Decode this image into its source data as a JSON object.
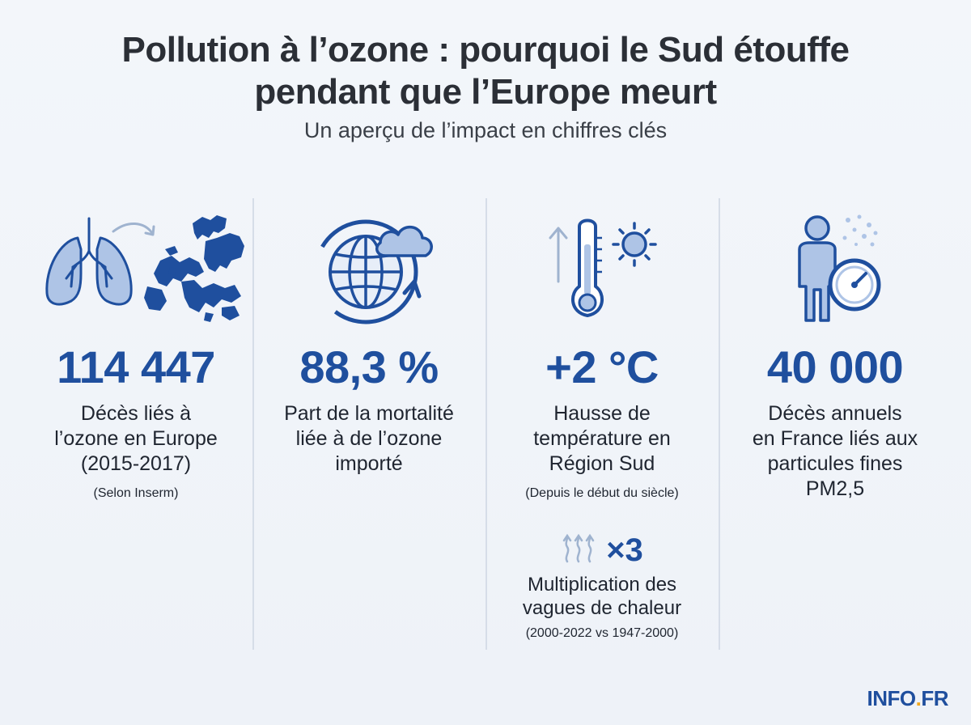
{
  "header": {
    "title_line1": "Pollution à l’ozone : pourquoi le Sud étouffe",
    "title_line2": "pendant que l’Europe meurt",
    "subtitle": "Un aperçu de l’impact en chiffres clés"
  },
  "stats": [
    {
      "icon": "lungs-to-europe-map-icon",
      "value": "114 447",
      "desc_lines": [
        "Décès liés à",
        "l’ozone en Europe",
        "(2015-2017)"
      ],
      "note": "(Selon Inserm)"
    },
    {
      "icon": "globe-cloud-icon",
      "value": "88,3 %",
      "desc_lines": [
        "Part de la mortalité",
        "liée à de l’ozone",
        "importé"
      ],
      "note": ""
    },
    {
      "icon": "thermometer-sun-icon",
      "value": "+2 °C",
      "desc_lines": [
        "Hausse de",
        "température en",
        "Région Sud"
      ],
      "note": "(Depuis le début du siècle)"
    },
    {
      "icon": "person-gauge-icon",
      "value": "40 000",
      "desc_lines": [
        "Décès annuels",
        "en France liés aux",
        "particules fines",
        "PM2,5"
      ],
      "note": ""
    }
  ],
  "heatwaves": {
    "icon": "heat-waves-icon",
    "value": "×3",
    "desc_lines": [
      "Multiplication des",
      "vagues de chaleur"
    ],
    "note": "(2000-2022 vs 1947-2000)"
  },
  "brand": {
    "name": "INFO",
    "dot": ".",
    "tld": "FR"
  },
  "colors": {
    "accent": "#1f4f9e",
    "light_blue": "#aec4e6",
    "brand_dot": "#f2a81d"
  }
}
